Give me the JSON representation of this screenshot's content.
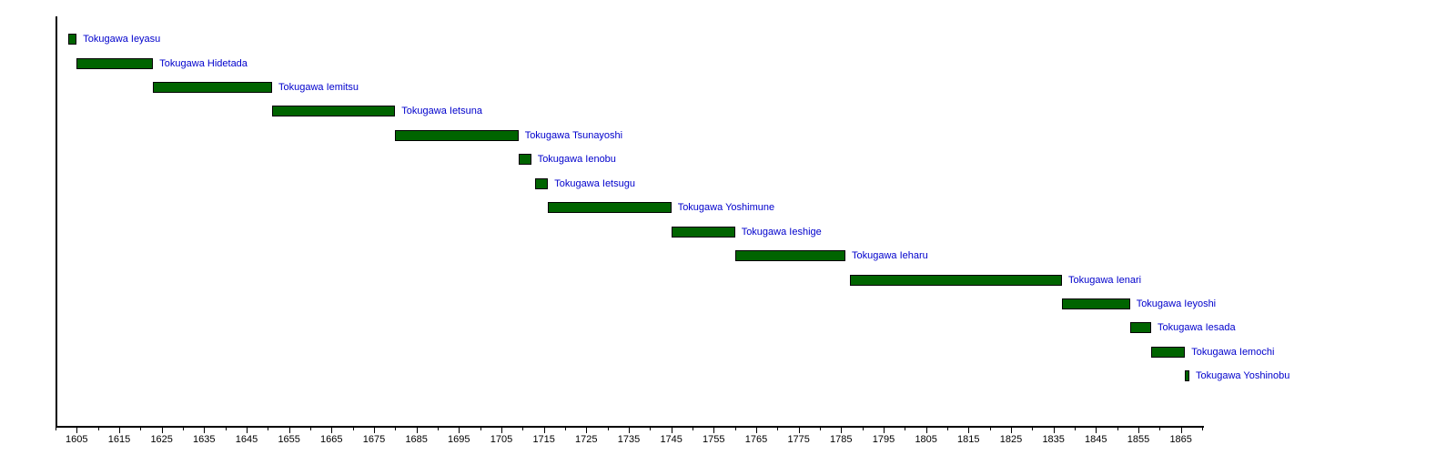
{
  "chart_data": {
    "type": "bar",
    "variant": "gantt-timeline",
    "title": "",
    "subtitle": "",
    "xlabel": "",
    "ylabel": "",
    "legend": false,
    "grid": false,
    "x_range": [
      1600,
      1870
    ],
    "x_major_ticks": [
      1605,
      1615,
      1625,
      1635,
      1645,
      1655,
      1665,
      1675,
      1685,
      1695,
      1705,
      1715,
      1725,
      1735,
      1745,
      1755,
      1765,
      1775,
      1785,
      1795,
      1805,
      1815,
      1825,
      1835,
      1845,
      1855,
      1865
    ],
    "x_minor_ticks": [
      1600,
      1610,
      1620,
      1630,
      1640,
      1650,
      1660,
      1670,
      1680,
      1690,
      1700,
      1710,
      1720,
      1730,
      1740,
      1750,
      1760,
      1770,
      1780,
      1790,
      1800,
      1810,
      1820,
      1830,
      1840,
      1850,
      1860,
      1870
    ],
    "series": [
      {
        "name": "Tokugawa Ieyasu",
        "start": 1603,
        "end": 1605
      },
      {
        "name": "Tokugawa Hidetada",
        "start": 1605,
        "end": 1623
      },
      {
        "name": "Tokugawa Iemitsu",
        "start": 1623,
        "end": 1651
      },
      {
        "name": "Tokugawa Ietsuna",
        "start": 1651,
        "end": 1680
      },
      {
        "name": "Tokugawa Tsunayoshi",
        "start": 1680,
        "end": 1709
      },
      {
        "name": "Tokugawa Ienobu",
        "start": 1709,
        "end": 1712
      },
      {
        "name": "Tokugawa Ietsugu",
        "start": 1713,
        "end": 1716
      },
      {
        "name": "Tokugawa Yoshimune",
        "start": 1716,
        "end": 1745
      },
      {
        "name": "Tokugawa Ieshige",
        "start": 1745,
        "end": 1760
      },
      {
        "name": "Tokugawa Ieharu",
        "start": 1760,
        "end": 1786
      },
      {
        "name": "Tokugawa Ienari",
        "start": 1787,
        "end": 1837
      },
      {
        "name": "Tokugawa Ieyoshi",
        "start": 1837,
        "end": 1853
      },
      {
        "name": "Tokugawa Iesada",
        "start": 1853,
        "end": 1858
      },
      {
        "name": "Tokugawa Iemochi",
        "start": 1858,
        "end": 1866
      },
      {
        "name": "Tokugawa Yoshinobu",
        "start": 1866,
        "end": 1867
      }
    ],
    "colors": {
      "bar_fill": "#006400",
      "bar_border": "#000000",
      "label_text": "#0000CC",
      "axis": "#000000",
      "background": "#FFFFFF"
    }
  }
}
